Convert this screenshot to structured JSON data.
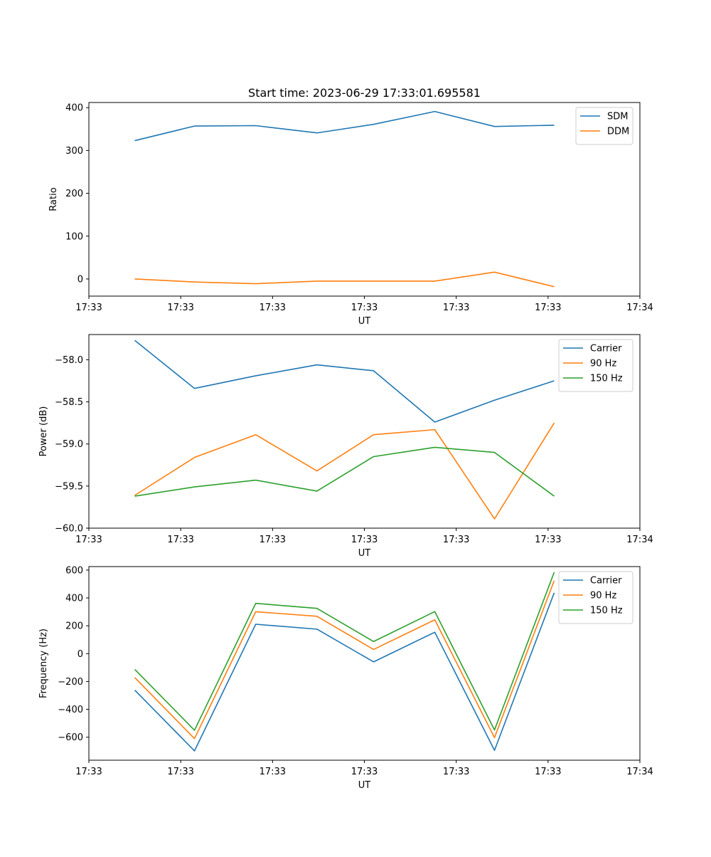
{
  "figure": {
    "title": "Start time: 2023-06-29 17:33:01.695581"
  },
  "colors": {
    "blue": "#1f77b4",
    "orange": "#ff7f0e",
    "green": "#2ca02c"
  },
  "chart_data": [
    {
      "type": "line",
      "title": "Start time: 2023-06-29 17:33:01.695581",
      "xlabel": "UT",
      "ylabel": "Ratio",
      "xlim": [
        0,
        18
      ],
      "ylim": [
        -40,
        412
      ],
      "x_ticks": [
        0,
        3,
        6,
        9,
        12,
        15,
        18
      ],
      "x_tick_labels": [
        "17:33",
        "17:33",
        "17:33",
        "17:33",
        "17:33",
        "17:33",
        "17:34"
      ],
      "y_ticks": [
        0,
        100,
        200,
        300,
        400
      ],
      "y_tick_labels": [
        "0",
        "100",
        "200",
        "300",
        "400"
      ],
      "x": [
        1.5,
        3.45,
        5.45,
        7.45,
        9.3,
        11.3,
        13.25,
        15.2
      ],
      "legend_position": "upper-right",
      "series": [
        {
          "name": "SDM",
          "color": "#1f77b4",
          "values": [
            323,
            357,
            358,
            341,
            361,
            391,
            356,
            359
          ]
        },
        {
          "name": "DDM",
          "color": "#ff7f0e",
          "values": [
            0,
            -7,
            -11,
            -5,
            -5,
            -5,
            16,
            -18
          ]
        }
      ]
    },
    {
      "type": "line",
      "xlabel": "UT",
      "ylabel": "Power (dB)",
      "xlim": [
        0,
        18
      ],
      "ylim": [
        -60.0,
        -57.7
      ],
      "x_ticks": [
        0,
        3,
        6,
        9,
        12,
        15,
        18
      ],
      "x_tick_labels": [
        "17:33",
        "17:33",
        "17:33",
        "17:33",
        "17:33",
        "17:33",
        "17:34"
      ],
      "y_ticks": [
        -60.0,
        -59.5,
        -59.0,
        -58.5,
        -58.0
      ],
      "y_tick_labels": [
        "−60.0",
        "−59.5",
        "−59.0",
        "−58.5",
        "−58.0"
      ],
      "x": [
        1.5,
        3.45,
        5.45,
        7.45,
        9.3,
        11.3,
        13.25,
        15.2
      ],
      "legend_position": "upper-right",
      "series": [
        {
          "name": "Carrier",
          "color": "#1f77b4",
          "values": [
            -57.77,
            -58.34,
            -58.19,
            -58.06,
            -58.13,
            -58.74,
            -58.48,
            -58.25
          ]
        },
        {
          "name": "90 Hz",
          "color": "#ff7f0e",
          "values": [
            -59.61,
            -59.16,
            -58.89,
            -59.32,
            -58.89,
            -58.83,
            -59.89,
            -58.75
          ]
        },
        {
          "name": "150 Hz",
          "color": "#2ca02c",
          "values": [
            -59.62,
            -59.51,
            -59.43,
            -59.56,
            -59.15,
            -59.04,
            -59.1,
            -59.62
          ]
        }
      ]
    },
    {
      "type": "line",
      "xlabel": "UT",
      "ylabel": "Frequency (Hz)",
      "xlim": [
        0,
        18
      ],
      "ylim": [
        -765,
        625
      ],
      "x_ticks": [
        0,
        3,
        6,
        9,
        12,
        15,
        18
      ],
      "x_tick_labels": [
        "17:33",
        "17:33",
        "17:33",
        "17:33",
        "17:33",
        "17:33",
        "17:34"
      ],
      "y_ticks": [
        -600,
        -400,
        -200,
        0,
        200,
        400,
        600
      ],
      "y_tick_labels": [
        "−600",
        "−400",
        "−200",
        "0",
        "200",
        "400",
        "600"
      ],
      "x": [
        1.5,
        3.45,
        5.45,
        7.45,
        9.3,
        11.3,
        13.25,
        15.2
      ],
      "legend_position": "upper-right",
      "series": [
        {
          "name": "Carrier",
          "color": "#1f77b4",
          "values": [
            -262,
            -698,
            211,
            176,
            -59,
            154,
            -694,
            437
          ]
        },
        {
          "name": "90 Hz",
          "color": "#ff7f0e",
          "values": [
            -172,
            -610,
            301,
            268,
            30,
            243,
            -603,
            524
          ]
        },
        {
          "name": "150 Hz",
          "color": "#2ca02c",
          "values": [
            -113,
            -550,
            361,
            325,
            87,
            302,
            -548,
            584
          ]
        }
      ]
    }
  ]
}
